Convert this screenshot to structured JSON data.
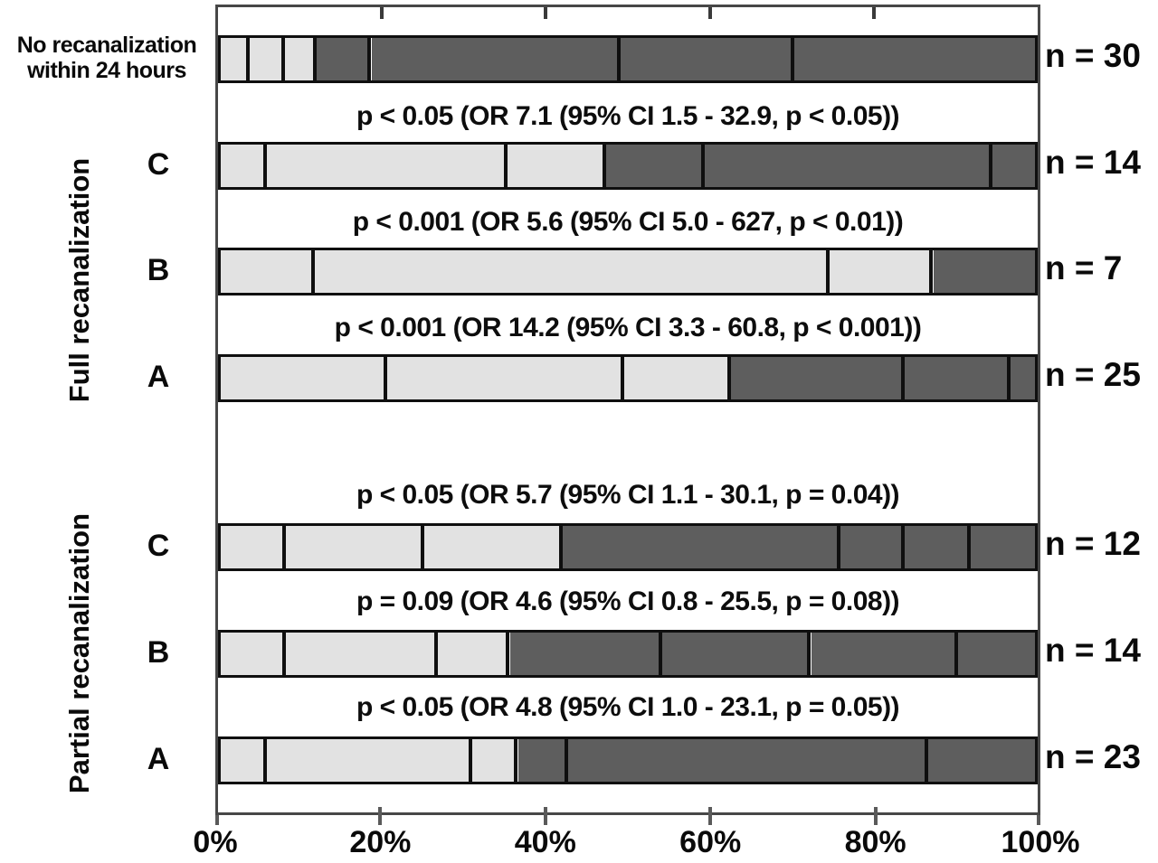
{
  "figure": {
    "no_recan_line1": "No recanalization",
    "no_recan_line2": "within 24 hours",
    "full_group_label": "Full recanalization",
    "partial_group_label": "Partial recanalization"
  },
  "axis": {
    "tick_labels": [
      "0%",
      "20%",
      "40%",
      "60%",
      "80%",
      "100%"
    ]
  },
  "colors": {
    "light_fill": "#e2e2e2",
    "dark_fill": "#5e5e5e",
    "segment_border": "#0f0f0f",
    "plot_border": "#474747"
  },
  "chart_data": {
    "type": "bar",
    "orientation": "horizontal",
    "stacked": true,
    "x_unit": "percent",
    "x_ticks": [
      0,
      20,
      40,
      60,
      80,
      100
    ],
    "xlim": [
      0,
      100
    ],
    "grid": false,
    "legend": "none",
    "rows": [
      {
        "group": "No recanalization within 24 hours",
        "label": "",
        "n": 30,
        "n_label": "n = 30",
        "annotation": "",
        "segments": [
          {
            "fill": "light",
            "width": 3.5
          },
          {
            "fill": "light",
            "width": 4.4
          },
          {
            "fill": "light",
            "width": 3.9
          },
          {
            "fill": "dark",
            "width": 6.7
          },
          {
            "fill": "dark",
            "width": 30.6
          },
          {
            "fill": "dark",
            "width": 21.3
          },
          {
            "fill": "dark",
            "width": 29.6
          }
        ]
      },
      {
        "group": "Full recanalization",
        "label": "C",
        "n": 14,
        "n_label": "n = 14",
        "annotation": "p < 0.05 (OR 7.1 (95% CI 1.5 - 32.9, p < 0.05))",
        "segments": [
          {
            "fill": "light",
            "width": 5.7
          },
          {
            "fill": "light",
            "width": 29.5
          },
          {
            "fill": "light",
            "width": 12.1
          },
          {
            "fill": "dark",
            "width": 12.1
          },
          {
            "fill": "dark",
            "width": 35.4
          },
          {
            "fill": "dark",
            "width": 5.2
          }
        ]
      },
      {
        "group": "Full recanalization",
        "label": "B",
        "n": 7,
        "n_label": "n = 7",
        "annotation": "p < 0.001 (OR 5.6 (95% CI 5.0 - 627, p < 0.01))",
        "segments": [
          {
            "fill": "light",
            "width": 11.6
          },
          {
            "fill": "light",
            "width": 63.2
          },
          {
            "fill": "light",
            "width": 12.7
          },
          {
            "fill": "dark",
            "width": 12.5
          }
        ]
      },
      {
        "group": "Full recanalization",
        "label": "A",
        "n": 25,
        "n_label": "n = 25",
        "annotation": "p < 0.001 (OR 14.2 (95% CI 3.3 - 60.8, p < 0.001))",
        "segments": [
          {
            "fill": "light",
            "width": 20.4
          },
          {
            "fill": "light",
            "width": 29.2
          },
          {
            "fill": "light",
            "width": 13.1
          },
          {
            "fill": "dark",
            "width": 21.3
          },
          {
            "fill": "dark",
            "width": 13.0
          },
          {
            "fill": "dark",
            "width": 3.0
          }
        ]
      },
      {
        "group": "Partial recanalization",
        "label": "C",
        "n": 12,
        "n_label": "n = 12",
        "annotation": "p < 0.05 (OR 5.7 (95% CI 1.1 - 30.1, p = 0.04))",
        "segments": [
          {
            "fill": "light",
            "width": 8.0
          },
          {
            "fill": "light",
            "width": 17.0
          },
          {
            "fill": "light",
            "width": 17.0
          },
          {
            "fill": "dark",
            "width": 34.1
          },
          {
            "fill": "dark",
            "width": 7.9
          },
          {
            "fill": "dark",
            "width": 8.1
          },
          {
            "fill": "dark",
            "width": 7.9
          }
        ]
      },
      {
        "group": "Partial recanalization",
        "label": "B",
        "n": 14,
        "n_label": "n = 14",
        "annotation": "p = 0.09 (OR 4.6 (95% CI 0.8 - 25.5, p = 0.08))",
        "segments": [
          {
            "fill": "light",
            "width": 8.0
          },
          {
            "fill": "light",
            "width": 18.7
          },
          {
            "fill": "light",
            "width": 8.8
          },
          {
            "fill": "dark",
            "width": 18.7
          },
          {
            "fill": "dark",
            "width": 18.3
          },
          {
            "fill": "dark",
            "width": 18.0
          },
          {
            "fill": "dark",
            "width": 9.5
          }
        ]
      },
      {
        "group": "Partial recanalization",
        "label": "A",
        "n": 23,
        "n_label": "n = 23",
        "annotation": "p < 0.05 (OR 4.8 (95% CI 1.0 - 23.1, p = 0.05))",
        "segments": [
          {
            "fill": "light",
            "width": 5.7
          },
          {
            "fill": "light",
            "width": 25.2
          },
          {
            "fill": "light",
            "width": 5.6
          },
          {
            "fill": "dark",
            "width": 6.2
          },
          {
            "fill": "dark",
            "width": 44.2
          },
          {
            "fill": "dark",
            "width": 13.1
          }
        ]
      }
    ]
  }
}
